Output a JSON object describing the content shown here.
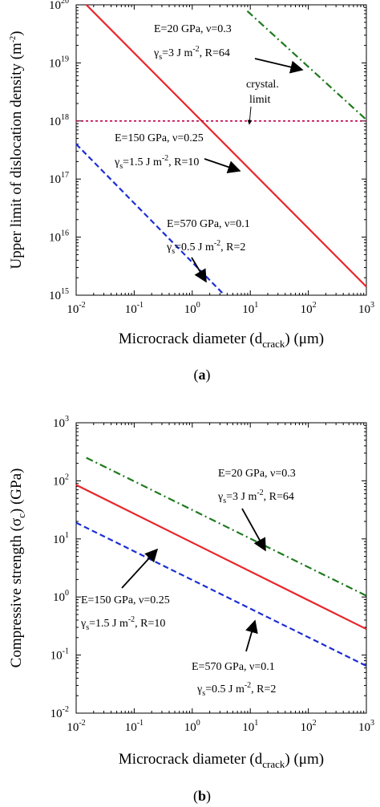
{
  "chart_data": [
    {
      "type": "line",
      "panel_label": "(a)",
      "xlabel": "Microcrack diameter (d_crack) (μm)",
      "ylabel": "Upper limit of dislocation density (m^-2)",
      "xscale": "log",
      "yscale": "log",
      "xlim": [
        0.01,
        1000
      ],
      "ylim": [
        1000000000000000.0,
        1e+20
      ],
      "xticks": [
        0.01,
        0.1,
        1,
        10,
        100,
        1000
      ],
      "yticks": [
        1000000000000000.0,
        1e+16,
        1e+17,
        1e+18,
        1e+19,
        1e+20
      ],
      "grid": false,
      "series": [
        {
          "name": "E=20 GPa, ν=0.3, γs=3 J m^-2, R=64",
          "style": "dash-dot",
          "color": "#1f7a1f",
          "x": [
            8.9,
            1000
          ],
          "y": [
            7.8e+19,
            1.05e+18
          ]
        },
        {
          "name": "E=150 GPa, ν=0.25, γs=1.5 J m^-2, R=10",
          "style": "solid",
          "color": "#e8262b",
          "x": [
            0.015,
            1000
          ],
          "y": [
            1e+20,
            1400000000000000.0
          ]
        },
        {
          "name": "E=570 GPa, ν=0.1, γs=0.5 J m^-2, R=2",
          "style": "dashed",
          "color": "#1c2fd4",
          "x": [
            0.01,
            3.6
          ],
          "y": [
            4e+17,
            1000000000000000.0
          ]
        },
        {
          "name": "crystal. limit",
          "style": "dotted",
          "color": "#c0004a",
          "x": [
            0.01,
            1000
          ],
          "y": [
            1e+18,
            1e+18
          ]
        }
      ],
      "annotations": [
        {
          "text": [
            "E=20 GPa, ν=0.3",
            "γs=3 J m^-2, R=64"
          ],
          "arrow_to": [
            75,
            1.3e+19
          ]
        },
        {
          "text": [
            "crystal.",
            "limit"
          ],
          "arrow_to": [
            10,
            1e+18
          ]
        },
        {
          "text": [
            "E=150 GPa, ν=0.25",
            "γs=1.5 J m^-2, R=10"
          ],
          "arrow_to": [
            8,
            1.9e+17
          ]
        },
        {
          "text": [
            "E=570 GPa, ν=0.1",
            "γs=0.5 J m^-2, R=2"
          ],
          "arrow_to": [
            1.5,
            2000000000000000.0
          ]
        }
      ]
    },
    {
      "type": "line",
      "panel_label": "(b)",
      "xlabel": "Microcrack diameter (d_crack) (μm)",
      "ylabel": "Compressive strength (σc) (GPa)",
      "xscale": "log",
      "yscale": "log",
      "xlim": [
        0.01,
        1000
      ],
      "ylim": [
        0.01,
        1000
      ],
      "xticks": [
        0.01,
        0.1,
        1,
        10,
        100,
        1000
      ],
      "yticks": [
        0.01,
        0.1,
        1,
        10,
        100,
        1000
      ],
      "grid": false,
      "series": [
        {
          "name": "E=20 GPa, ν=0.3, γs=3 J m^-2, R=64",
          "style": "dash-dot",
          "color": "#1f7a1f",
          "x": [
            0.015,
            1000
          ],
          "y": [
            250,
            1.05
          ]
        },
        {
          "name": "E=150 GPa, ν=0.25, γs=1.5 J m^-2, R=10",
          "style": "solid",
          "color": "#e8262b",
          "x": [
            0.01,
            1000
          ],
          "y": [
            85,
            0.28
          ]
        },
        {
          "name": "E=570 GPa, ν=0.1, γs=0.5 J m^-2, R=2",
          "style": "dashed",
          "color": "#1c2fd4",
          "x": [
            0.01,
            1000
          ],
          "y": [
            19,
            0.065
          ]
        }
      ],
      "annotations": [
        {
          "text": [
            "E=20 GPa, ν=0.3",
            "γs=3 J m^-2, R=64"
          ],
          "arrow_to": [
            30,
            10
          ]
        },
        {
          "text": [
            "E=150 GPa, ν=0.25",
            "γs=1.5 J m^-2, R=10"
          ],
          "arrow_to": [
            0.3,
            17
          ]
        },
        {
          "text": [
            "E=570 GPa, ν=0.1",
            "γs=0.5 J m^-2, R=2"
          ],
          "arrow_to": [
            15,
            0.62
          ]
        }
      ]
    }
  ]
}
